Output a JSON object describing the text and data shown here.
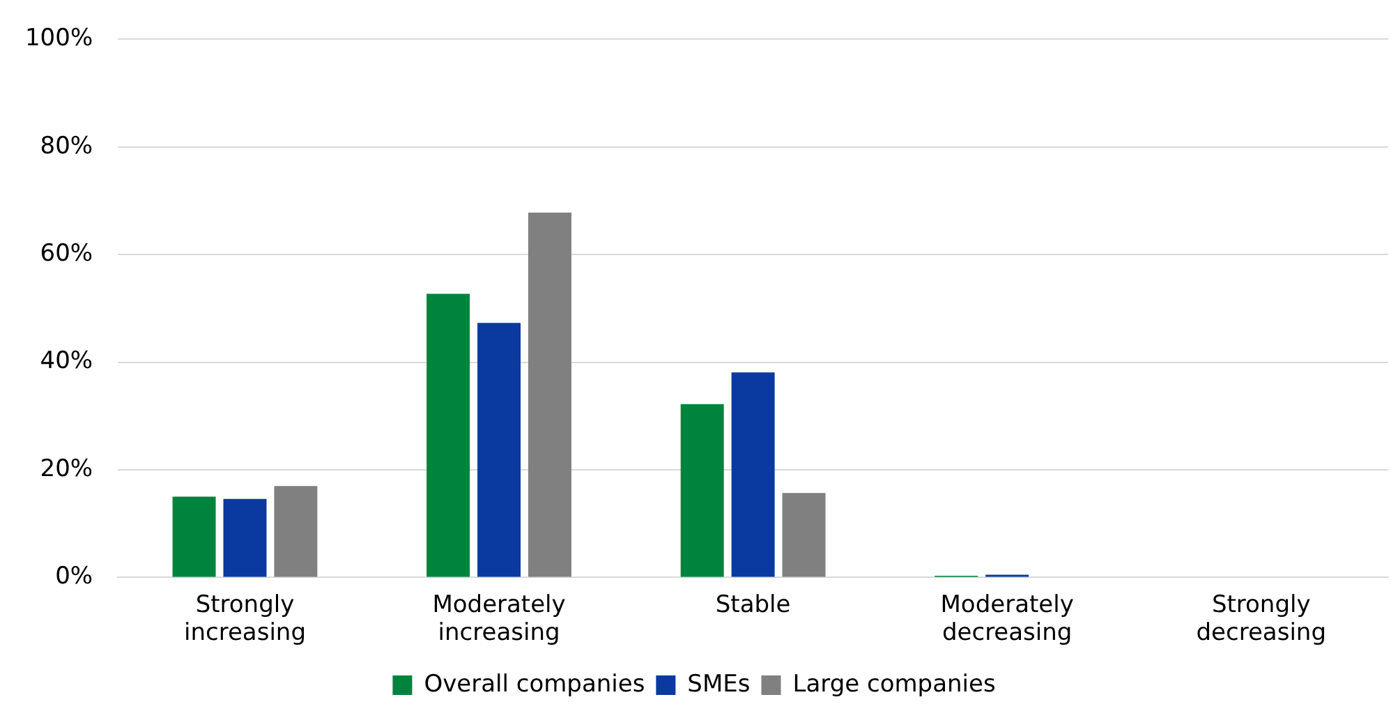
{
  "chart_data": {
    "type": "bar",
    "categories": [
      "Strongly\nincreasing",
      "Moderately\nincreasing",
      "Stable",
      "Moderately\ndecreasing",
      "Strongly\ndecreasing"
    ],
    "series": [
      {
        "name": "Overall companies",
        "color": "#00843d",
        "values": [
          15,
          52.7,
          32.2,
          0.3,
          0
        ]
      },
      {
        "name": "SMEs",
        "color": "#0a3aa0",
        "values": [
          14.6,
          47.3,
          38.1,
          0.5,
          0
        ]
      },
      {
        "name": "Large companies",
        "color": "#808080",
        "values": [
          17,
          67.8,
          15.7,
          0,
          0
        ]
      }
    ],
    "ylim": [
      0,
      100
    ],
    "yticks": [
      {
        "value": 0,
        "label": "0%"
      },
      {
        "value": 20,
        "label": "20%"
      },
      {
        "value": 40,
        "label": "40%"
      },
      {
        "value": 60,
        "label": "60%"
      },
      {
        "value": 80,
        "label": "80%"
      },
      {
        "value": 100,
        "label": "100%"
      }
    ],
    "grid": "y",
    "legend": "bottom"
  }
}
